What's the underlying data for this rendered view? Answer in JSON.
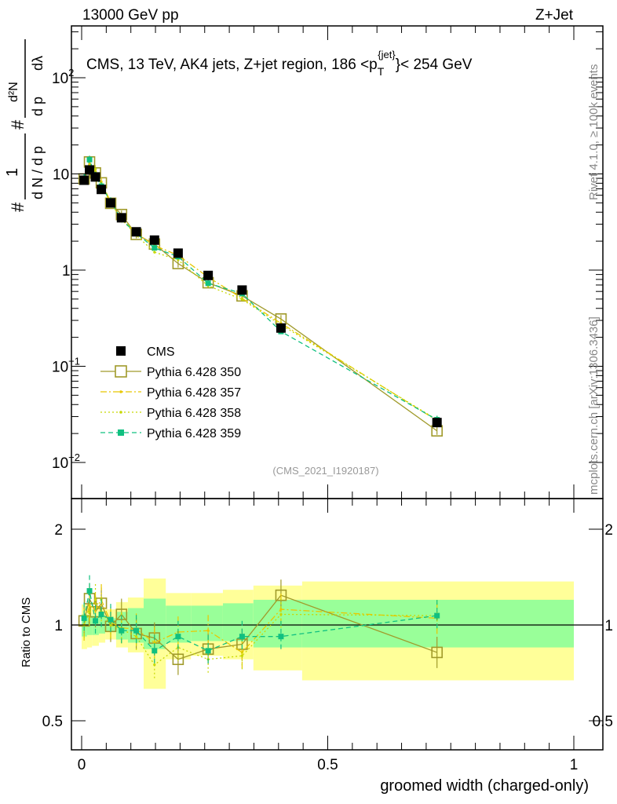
{
  "header": {
    "left": "13000 GeV pp",
    "right": "Z+Jet"
  },
  "side": {
    "rivet": "Rivet 4.1.0, ≥ 100k events",
    "mcplots": "mcplots.cern.ch [arXiv:1306.3436]"
  },
  "chart_data": {
    "type": "line",
    "title": "CMS, 13 TeV, AK4 jets, Z+jet region, 186 <p_T^{jet}< 254 GeV",
    "title_parts": {
      "main": "CMS, 13 TeV, AK4 jets, Z+jet region, 186 <p",
      "sub": "T",
      "sup": "{jet}",
      "end": "}< 254 GeV"
    },
    "ylabel": "1/N dN/dp_T / d²N/dp_T dλ",
    "ylabel_parts": {
      "num1": "1",
      "den1": "d N / d p",
      "t": "T",
      "num2": "d²N",
      "den2": "d p",
      "d": "dλ",
      "hash": "#"
    },
    "ratio_ylabel": "Ratio to CMS",
    "xlabel": "groomed width (charged-only)",
    "analysis": "(CMS_2021_I1920187)",
    "xlim": [
      -0.02,
      1.06
    ],
    "ylim": [
      0.0047,
      360
    ],
    "yscale": "log",
    "ratio_ylim": [
      0.38,
      2.5
    ],
    "xticks": [
      "0",
      "0.5",
      "1"
    ],
    "xtick_values": [
      0,
      0.5,
      1
    ],
    "yticks": [
      {
        "v": 100,
        "b": "10",
        "e": "2"
      },
      {
        "v": 10,
        "b": "10",
        "e": ""
      },
      {
        "v": 1,
        "b": "1",
        "e": ""
      },
      {
        "v": 0.1,
        "b": "10",
        "e": "−1"
      },
      {
        "v": 0.01,
        "b": "10",
        "e": "−2"
      }
    ],
    "ratio_yticks": [
      {
        "v": 2,
        "l": "2"
      },
      {
        "v": 1,
        "l": "1"
      },
      {
        "v": 0.5,
        "l": "0.5"
      }
    ],
    "x": [
      0.005,
      0.016,
      0.028,
      0.04,
      0.059,
      0.081,
      0.111,
      0.148,
      0.196,
      0.257,
      0.326,
      0.405,
      0.722
    ],
    "bin_edges": [
      0,
      0.011,
      0.021,
      0.035,
      0.048,
      0.07,
      0.094,
      0.126,
      0.171,
      0.222,
      0.287,
      0.349,
      0.448,
      1.0
    ],
    "band_yellow": [
      [
        0.84,
        1.16
      ],
      [
        0.85,
        1.15
      ],
      [
        0.86,
        1.14
      ],
      [
        0.88,
        1.13
      ],
      [
        0.9,
        1.12
      ],
      [
        0.85,
        1.18
      ],
      [
        0.82,
        1.22
      ],
      [
        0.63,
        1.4
      ],
      [
        0.78,
        1.26
      ],
      [
        0.8,
        1.26
      ],
      [
        0.78,
        1.29
      ],
      [
        0.72,
        1.33
      ],
      [
        0.67,
        1.37
      ]
    ],
    "band_green": [
      [
        0.92,
        1.08
      ],
      [
        0.93,
        1.07
      ],
      [
        0.93,
        1.07
      ],
      [
        0.94,
        1.06
      ],
      [
        0.95,
        1.05
      ],
      [
        0.9,
        1.1
      ],
      [
        0.88,
        1.13
      ],
      [
        0.84,
        1.21
      ],
      [
        0.88,
        1.15
      ],
      [
        0.89,
        1.15
      ],
      [
        0.89,
        1.17
      ],
      [
        0.85,
        1.2
      ],
      [
        0.85,
        1.2
      ]
    ],
    "series": [
      {
        "name": "CMS",
        "color": "#000000",
        "values": [
          8.6,
          11,
          9.3,
          6.9,
          5.0,
          3.5,
          2.5,
          2.05,
          1.5,
          0.88,
          0.62,
          0.25,
          0.026
        ]
      },
      {
        "name": "Pythia 6.428 350",
        "color": "#a09a2a",
        "ratio": [
          1.03,
          1.21,
          1.1,
          1.17,
          0.99,
          1.08,
          0.94,
          0.91,
          0.78,
          0.84,
          0.87,
          1.24,
          0.82
        ]
      },
      {
        "name": "Pythia 6.428 357",
        "color": "#e8c800",
        "ratio": [
          1.0,
          1.15,
          1.12,
          1.2,
          1.02,
          0.98,
          0.97,
          0.88,
          0.95,
          0.96,
          0.82,
          1.12,
          1.05
        ]
      },
      {
        "name": "Pythia 6.428 358",
        "color": "#c8d800",
        "ratio": [
          1.0,
          1.1,
          1.2,
          1.1,
          1.0,
          0.97,
          0.92,
          0.75,
          0.85,
          0.78,
          0.8,
          1.08,
          1.07
        ]
      },
      {
        "name": "Pythia 6.428 359",
        "color": "#10c080",
        "ratio": [
          1.05,
          1.28,
          1.03,
          1.08,
          1.04,
          0.96,
          0.96,
          0.83,
          0.92,
          0.83,
          0.92,
          0.92,
          1.07
        ]
      }
    ]
  }
}
